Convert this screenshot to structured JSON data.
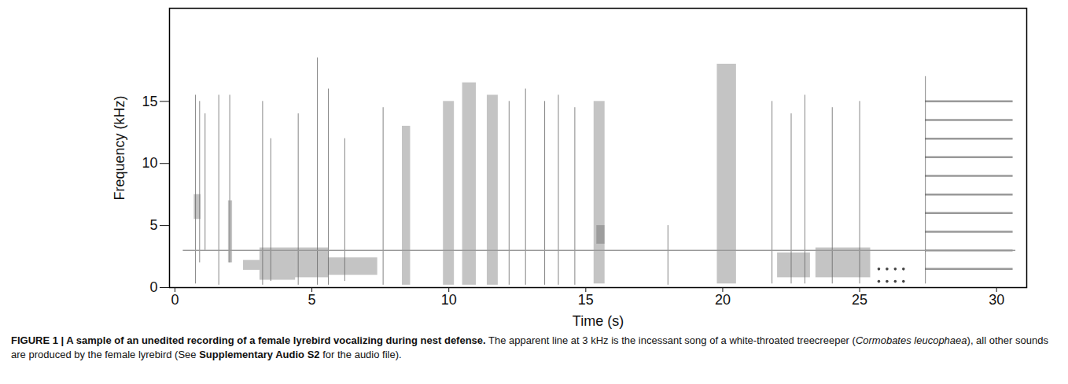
{
  "chart_data": {
    "type": "spectrogram",
    "x_label": "Time (s)",
    "y_label": "Frequency (kHz)",
    "xlim": [
      -0.2,
      31.1
    ],
    "ylim": [
      0,
      22.5
    ],
    "xticks": [
      0,
      5,
      10,
      15,
      20,
      25,
      30
    ],
    "yticks": [
      0,
      5,
      10,
      15
    ],
    "tone": {
      "t0": 0.3,
      "t1": 30.7,
      "f": 3
    },
    "bands": [
      {
        "t0": 0.7,
        "t1": 0.95,
        "f0": 5.5,
        "f1": 7.5
      },
      {
        "t0": 1.95,
        "t1": 2.1,
        "f0": 2,
        "f1": 7
      },
      {
        "t0": 2.5,
        "t1": 3.1,
        "f0": 1.4,
        "f1": 2.2
      },
      {
        "t0": 3.1,
        "t1": 4.4,
        "f0": 0.6,
        "f1": 3.2
      },
      {
        "t0": 4.4,
        "t1": 5.6,
        "f0": 0.8,
        "f1": 3.2
      },
      {
        "t0": 5.6,
        "t1": 7.4,
        "f0": 1.0,
        "f1": 2.4
      },
      {
        "t0": 8.3,
        "t1": 8.6,
        "f0": 0.2,
        "f1": 13
      },
      {
        "t0": 9.8,
        "t1": 10.2,
        "f0": 0.2,
        "f1": 15
      },
      {
        "t0": 10.5,
        "t1": 11.0,
        "f0": 0.2,
        "f1": 16.5
      },
      {
        "t0": 11.4,
        "t1": 11.8,
        "f0": 0.2,
        "f1": 15.5
      },
      {
        "t0": 15.3,
        "t1": 15.7,
        "f0": 0.3,
        "f1": 15
      },
      {
        "t0": 15.4,
        "t1": 15.7,
        "f0": 3.5,
        "f1": 5
      },
      {
        "t0": 19.8,
        "t1": 20.5,
        "f0": 0.3,
        "f1": 18
      },
      {
        "t0": 22.0,
        "t1": 23.2,
        "f0": 0.8,
        "f1": 2.8
      },
      {
        "t0": 23.4,
        "t1": 25.4,
        "f0": 0.8,
        "f1": 3.2
      }
    ],
    "clicks": [
      {
        "t": 0.75,
        "f0": 0.3,
        "f1": 15.5
      },
      {
        "t": 0.9,
        "f0": 2,
        "f1": 15
      },
      {
        "t": 1.1,
        "f0": 3,
        "f1": 14
      },
      {
        "t": 1.6,
        "f0": 0.2,
        "f1": 15.5
      },
      {
        "t": 2.0,
        "f0": 2,
        "f1": 15.5
      },
      {
        "t": 3.2,
        "f0": 0.2,
        "f1": 15
      },
      {
        "t": 3.5,
        "f0": 0.5,
        "f1": 12
      },
      {
        "t": 4.5,
        "f0": 0.2,
        "f1": 14
      },
      {
        "t": 5.2,
        "f0": 0.2,
        "f1": 18.5
      },
      {
        "t": 5.6,
        "f0": 0.2,
        "f1": 16
      },
      {
        "t": 6.2,
        "f0": 0.5,
        "f1": 12
      },
      {
        "t": 7.6,
        "f0": 0.2,
        "f1": 14.5
      },
      {
        "t": 12.2,
        "f0": 0.2,
        "f1": 15
      },
      {
        "t": 12.8,
        "f0": 0.2,
        "f1": 16
      },
      {
        "t": 13.5,
        "f0": 0.2,
        "f1": 15
      },
      {
        "t": 14.0,
        "f0": 0.2,
        "f1": 15.5
      },
      {
        "t": 14.6,
        "f0": 0.2,
        "f1": 14.5
      },
      {
        "t": 18.0,
        "f0": 0.2,
        "f1": 5
      },
      {
        "t": 21.8,
        "f0": 0.3,
        "f1": 15
      },
      {
        "t": 22.5,
        "f0": 0.3,
        "f1": 14
      },
      {
        "t": 23.0,
        "f0": 0.3,
        "f1": 15.5
      },
      {
        "t": 24.0,
        "f0": 0.3,
        "f1": 14.5
      },
      {
        "t": 25.0,
        "f0": 0.3,
        "f1": 15
      },
      {
        "t": 27.4,
        "f0": 0.3,
        "f1": 17
      }
    ],
    "dots": [
      {
        "t": 25.7,
        "f": 1.5
      },
      {
        "t": 26.0,
        "f": 1.5
      },
      {
        "t": 26.3,
        "f": 1.5
      },
      {
        "t": 26.6,
        "f": 1.5
      },
      {
        "t": 25.7,
        "f": 0.5
      },
      {
        "t": 26.0,
        "f": 0.5
      },
      {
        "t": 26.3,
        "f": 0.5
      },
      {
        "t": 26.6,
        "f": 0.5
      }
    ],
    "harmonics": {
      "t0": 27.4,
      "t1": 30.6,
      "f": [
        1.5,
        3,
        4.5,
        6,
        7.5,
        9,
        10.5,
        12,
        13.5,
        15
      ]
    },
    "caption": [
      {
        "text": "FIGURE 1 | A sample of an unedited recording of a female lyrebird vocalizing during nest defense.",
        "style": "bold"
      },
      {
        "text": " The apparent line at 3 kHz is the incessant song of a white-throated treecreeper (",
        "style": "normal"
      },
      {
        "text": "Cormobates leucophaea",
        "style": "italic"
      },
      {
        "text": "), all other sounds are produced by the female lyrebird (See ",
        "style": "normal"
      },
      {
        "text": "Supplementary Audio S2",
        "style": "bold"
      },
      {
        "text": " for the audio file).",
        "style": "normal"
      }
    ]
  }
}
